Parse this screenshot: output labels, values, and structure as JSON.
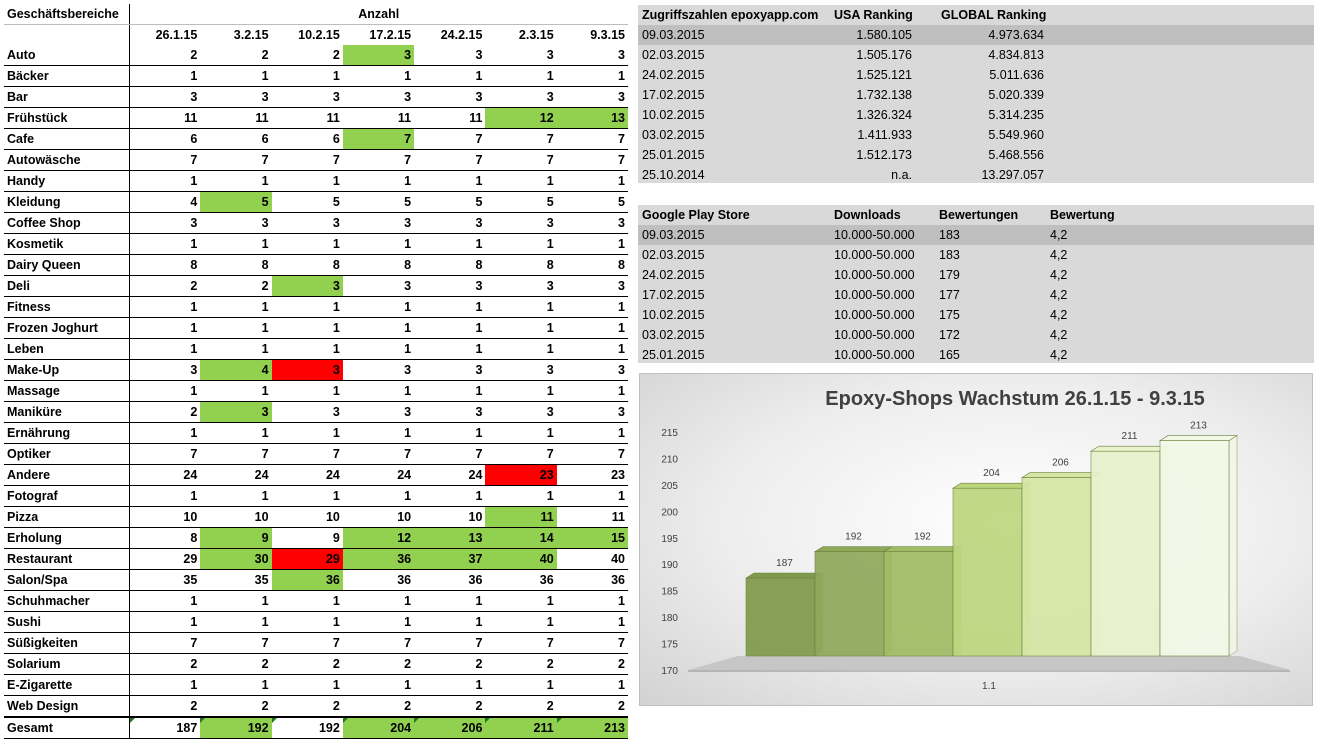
{
  "left_table": {
    "header_category": "Geschäftsbereiche",
    "header_count": "Anzahl",
    "dates": [
      "26.1.15",
      "3.2.15",
      "10.2.15",
      "17.2.15",
      "24.2.15",
      "2.3.15",
      "9.3.15"
    ],
    "rows": [
      {
        "name": "Auto",
        "values": [
          "2",
          "2",
          "2",
          "3",
          "3",
          "3",
          "3"
        ],
        "marks": [
          "",
          "",
          "",
          "g",
          "",
          "",
          ""
        ]
      },
      {
        "name": "Bäcker",
        "values": [
          "1",
          "1",
          "1",
          "1",
          "1",
          "1",
          "1"
        ],
        "marks": [
          "",
          "",
          "",
          "",
          "",
          "",
          ""
        ]
      },
      {
        "name": "Bar",
        "values": [
          "3",
          "3",
          "3",
          "3",
          "3",
          "3",
          "3"
        ],
        "marks": [
          "",
          "",
          "",
          "",
          "",
          "",
          ""
        ]
      },
      {
        "name": "Frühstück",
        "values": [
          "11",
          "11",
          "11",
          "11",
          "11",
          "12",
          "13"
        ],
        "marks": [
          "",
          "",
          "",
          "",
          "",
          "g",
          "g"
        ]
      },
      {
        "name": "Cafe",
        "values": [
          "6",
          "6",
          "6",
          "7",
          "7",
          "7",
          "7"
        ],
        "marks": [
          "",
          "",
          "",
          "g",
          "",
          "",
          ""
        ]
      },
      {
        "name": "Autowäsche",
        "values": [
          "7",
          "7",
          "7",
          "7",
          "7",
          "7",
          "7"
        ],
        "marks": [
          "",
          "",
          "",
          "",
          "",
          "",
          ""
        ]
      },
      {
        "name": "Handy",
        "values": [
          "1",
          "1",
          "1",
          "1",
          "1",
          "1",
          "1"
        ],
        "marks": [
          "",
          "",
          "",
          "",
          "",
          "",
          ""
        ]
      },
      {
        "name": "Kleidung",
        "values": [
          "4",
          "5",
          "5",
          "5",
          "5",
          "5",
          "5"
        ],
        "marks": [
          "",
          "g",
          "",
          "",
          "",
          "",
          ""
        ]
      },
      {
        "name": "Coffee Shop",
        "values": [
          "3",
          "3",
          "3",
          "3",
          "3",
          "3",
          "3"
        ],
        "marks": [
          "",
          "",
          "",
          "",
          "",
          "",
          ""
        ]
      },
      {
        "name": "Kosmetik",
        "values": [
          "1",
          "1",
          "1",
          "1",
          "1",
          "1",
          "1"
        ],
        "marks": [
          "",
          "",
          "",
          "",
          "",
          "",
          ""
        ]
      },
      {
        "name": "Dairy Queen",
        "values": [
          "8",
          "8",
          "8",
          "8",
          "8",
          "8",
          "8"
        ],
        "marks": [
          "",
          "",
          "",
          "",
          "",
          "",
          ""
        ]
      },
      {
        "name": "Deli",
        "values": [
          "2",
          "2",
          "3",
          "3",
          "3",
          "3",
          "3"
        ],
        "marks": [
          "",
          "",
          "g",
          "",
          "",
          "",
          ""
        ]
      },
      {
        "name": "Fitness",
        "values": [
          "1",
          "1",
          "1",
          "1",
          "1",
          "1",
          "1"
        ],
        "marks": [
          "",
          "",
          "",
          "",
          "",
          "",
          ""
        ]
      },
      {
        "name": "Frozen Joghurt",
        "values": [
          "1",
          "1",
          "1",
          "1",
          "1",
          "1",
          "1"
        ],
        "marks": [
          "",
          "",
          "",
          "",
          "",
          "",
          ""
        ]
      },
      {
        "name": "Leben",
        "values": [
          "1",
          "1",
          "1",
          "1",
          "1",
          "1",
          "1"
        ],
        "marks": [
          "",
          "",
          "",
          "",
          "",
          "",
          ""
        ]
      },
      {
        "name": "Make-Up",
        "values": [
          "3",
          "4",
          "3",
          "3",
          "3",
          "3",
          "3"
        ],
        "marks": [
          "",
          "g",
          "r",
          "",
          "",
          "",
          ""
        ]
      },
      {
        "name": "Massage",
        "values": [
          "1",
          "1",
          "1",
          "1",
          "1",
          "1",
          "1"
        ],
        "marks": [
          "",
          "",
          "",
          "",
          "",
          "",
          ""
        ]
      },
      {
        "name": "Maniküre",
        "values": [
          "2",
          "3",
          "3",
          "3",
          "3",
          "3",
          "3"
        ],
        "marks": [
          "",
          "g",
          "",
          "",
          "",
          "",
          ""
        ]
      },
      {
        "name": "Ernährung",
        "values": [
          "1",
          "1",
          "1",
          "1",
          "1",
          "1",
          "1"
        ],
        "marks": [
          "",
          "",
          "",
          "",
          "",
          "",
          ""
        ]
      },
      {
        "name": "Optiker",
        "values": [
          "7",
          "7",
          "7",
          "7",
          "7",
          "7",
          "7"
        ],
        "marks": [
          "",
          "",
          "",
          "",
          "",
          "",
          ""
        ]
      },
      {
        "name": "Andere",
        "values": [
          "24",
          "24",
          "24",
          "24",
          "24",
          "23",
          "23"
        ],
        "marks": [
          "",
          "",
          "",
          "",
          "",
          "r",
          ""
        ]
      },
      {
        "name": "Fotograf",
        "values": [
          "1",
          "1",
          "1",
          "1",
          "1",
          "1",
          "1"
        ],
        "marks": [
          "",
          "",
          "",
          "",
          "",
          "",
          ""
        ]
      },
      {
        "name": "Pizza",
        "values": [
          "10",
          "10",
          "10",
          "10",
          "10",
          "11",
          "11"
        ],
        "marks": [
          "",
          "",
          "",
          "",
          "",
          "g",
          ""
        ]
      },
      {
        "name": "Erholung",
        "values": [
          "8",
          "9",
          "9",
          "12",
          "13",
          "14",
          "15"
        ],
        "marks": [
          "",
          "g",
          "",
          "g",
          "g",
          "g",
          "g"
        ]
      },
      {
        "name": "Restaurant",
        "values": [
          "29",
          "30",
          "29",
          "36",
          "37",
          "40",
          "40"
        ],
        "marks": [
          "",
          "g",
          "r",
          "g",
          "g",
          "g",
          ""
        ]
      },
      {
        "name": "Salon/Spa",
        "values": [
          "35",
          "35",
          "36",
          "36",
          "36",
          "36",
          "36"
        ],
        "marks": [
          "",
          "",
          "g",
          "",
          "",
          "",
          ""
        ]
      },
      {
        "name": "Schuhmacher",
        "values": [
          "1",
          "1",
          "1",
          "1",
          "1",
          "1",
          "1"
        ],
        "marks": [
          "",
          "",
          "",
          "",
          "",
          "",
          ""
        ]
      },
      {
        "name": "Sushi",
        "values": [
          "1",
          "1",
          "1",
          "1",
          "1",
          "1",
          "1"
        ],
        "marks": [
          "",
          "",
          "",
          "",
          "",
          "",
          ""
        ]
      },
      {
        "name": "Süßigkeiten",
        "values": [
          "7",
          "7",
          "7",
          "7",
          "7",
          "7",
          "7"
        ],
        "marks": [
          "",
          "",
          "",
          "",
          "",
          "",
          ""
        ]
      },
      {
        "name": "Solarium",
        "values": [
          "2",
          "2",
          "2",
          "2",
          "2",
          "2",
          "2"
        ],
        "marks": [
          "",
          "",
          "",
          "",
          "",
          "",
          ""
        ]
      },
      {
        "name": "E-Zigarette",
        "values": [
          "1",
          "1",
          "1",
          "1",
          "1",
          "1",
          "1"
        ],
        "marks": [
          "",
          "",
          "",
          "",
          "",
          "",
          ""
        ]
      },
      {
        "name": "Web Design",
        "values": [
          "2",
          "2",
          "2",
          "2",
          "2",
          "2",
          "2"
        ],
        "marks": [
          "",
          "",
          "",
          "",
          "",
          "",
          ""
        ]
      }
    ],
    "total": {
      "name": "Gesamt",
      "values": [
        "187",
        "192",
        "192",
        "204",
        "206",
        "211",
        "213"
      ],
      "marks": [
        "",
        "g",
        "",
        "g",
        "g",
        "g",
        "g"
      ]
    }
  },
  "ranking": {
    "headers": [
      "Zugriffszahlen epoxyapp.com",
      "USA Ranking",
      "GLOBAL Ranking"
    ],
    "rows": [
      [
        "09.03.2015",
        "1.580.105",
        "4.973.634"
      ],
      [
        "02.03.2015",
        "1.505.176",
        "4.834.813"
      ],
      [
        "24.02.2015",
        "1.525.121",
        "5.011.636"
      ],
      [
        "17.02.2015",
        "1.732.138",
        "5.020.339"
      ],
      [
        "10.02.2015",
        "1.326.324",
        "5.314.235"
      ],
      [
        "03.02.2015",
        "1.411.933",
        "5.549.960"
      ],
      [
        "25.01.2015",
        "1.512.173",
        "5.468.556"
      ],
      [
        "25.10.2014",
        "n.a.",
        "13.297.057"
      ]
    ]
  },
  "playstore": {
    "headers": [
      "Google Play Store",
      "Downloads",
      "Bewertungen",
      "Bewertung"
    ],
    "rows": [
      [
        "09.03.2015",
        "10.000-50.000",
        "183",
        "4,2"
      ],
      [
        "02.03.2015",
        "10.000-50.000",
        "183",
        "4,2"
      ],
      [
        "24.02.2015",
        "10.000-50.000",
        "179",
        "4,2"
      ],
      [
        "17.02.2015",
        "10.000-50.000",
        "177",
        "4,2"
      ],
      [
        "10.02.2015",
        "10.000-50.000",
        "175",
        "4,2"
      ],
      [
        "03.02.2015",
        "10.000-50.000",
        "172",
        "4,2"
      ],
      [
        "25.01.2015",
        "10.000-50.000",
        "165",
        "4,2"
      ]
    ]
  },
  "colors": {
    "increase": "#92d050",
    "decrease": "#ff0000",
    "panel_bg": "#d9d9d9",
    "selected_row": "#bfbfbf",
    "bar_shades": [
      "#7f9a4a",
      "#8ea85a",
      "#a0bc64",
      "#bcd67e",
      "#d4e6a4",
      "#e8f2cc",
      "#f3f8e6"
    ]
  },
  "chart_data": {
    "type": "bar",
    "title": "Epoxy-Shops Wachstum 26.1.15 - 9.3.15",
    "categories": [
      "1.1"
    ],
    "series": [
      {
        "name": "26.1.15",
        "values": [
          187
        ]
      },
      {
        "name": "3.2.15",
        "values": [
          192
        ]
      },
      {
        "name": "10.2.15",
        "values": [
          192
        ]
      },
      {
        "name": "17.2.15",
        "values": [
          204
        ]
      },
      {
        "name": "24.2.15",
        "values": [
          206
        ]
      },
      {
        "name": "2.3.15",
        "values": [
          211
        ]
      },
      {
        "name": "9.3.15",
        "values": [
          213
        ]
      }
    ],
    "ylim": [
      170,
      215
    ],
    "yticks": [
      170,
      175,
      180,
      185,
      190,
      195,
      200,
      205,
      210,
      215
    ],
    "xlabel": "",
    "ylabel": "",
    "legend": "none",
    "grid": false
  }
}
